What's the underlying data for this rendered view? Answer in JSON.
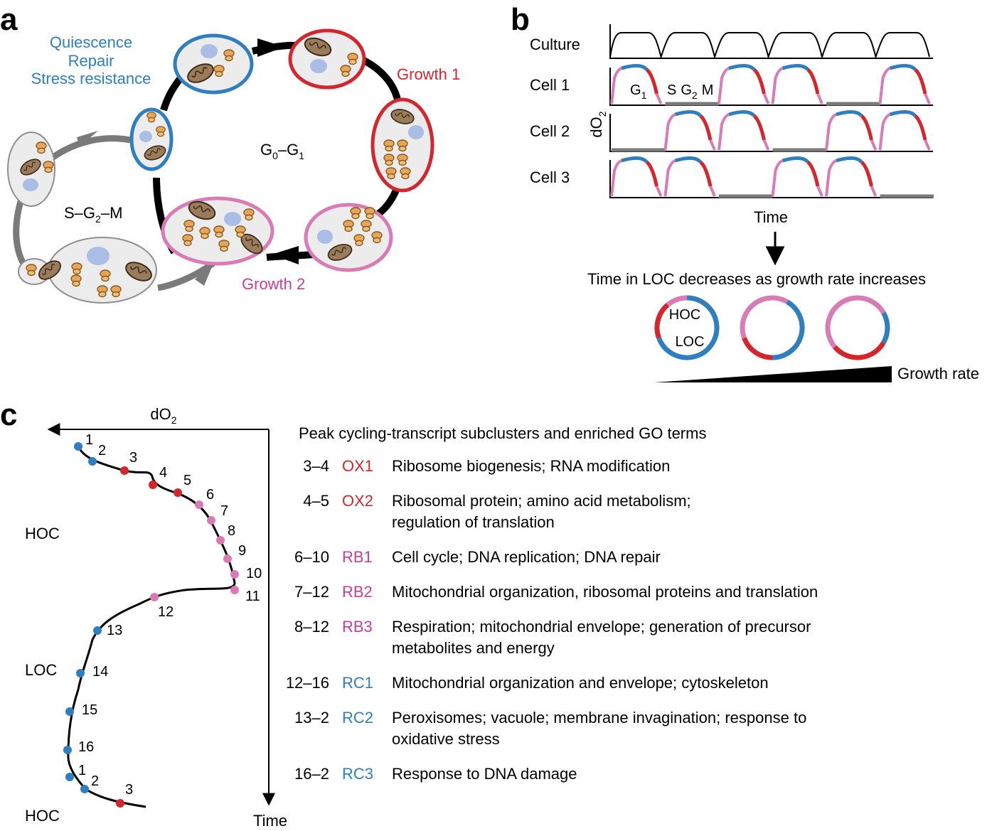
{
  "panels": {
    "a": "a",
    "b": "b",
    "c": "c"
  },
  "colors": {
    "blue": "#2f7ec0",
    "red": "#d3262d",
    "pink": "#d97cb6",
    "gray": "#7a7a7a",
    "cell_fill": "#ececec",
    "cell_stroke": "#8f8f8f",
    "mito": "#9a7b5a",
    "ribosome": "#e6a65a",
    "nucleus": "#a9bde6"
  },
  "panel_a": {
    "quiescence": "Quiescence",
    "repair": "Repair",
    "stress": "Stress resistance",
    "growth1": "Growth 1",
    "growth2": "Growth 2",
    "g0g1": {
      "g": "G",
      "s0": "0",
      "dash": "–G",
      "s1": "1"
    },
    "sg2m": {
      "pre": "S–G",
      "s2": "2",
      "post": "–M"
    }
  },
  "panel_b": {
    "rows": [
      "Culture",
      "Cell 1",
      "Cell 2",
      "Cell 3"
    ],
    "y_axis": {
      "main": "dO",
      "sub": "2"
    },
    "cell1_labels": {
      "g": "G",
      "g_sub": "1",
      "s": "S",
      "g2": "G",
      "g2_sub": "2",
      "m": "M"
    },
    "time": "Time",
    "decrease_text": "Time in LOC decreases as growth rate increases",
    "hoc": "HOC",
    "loc": "LOC",
    "growth_rate": "Growth rate"
  },
  "panel_c": {
    "x_axis": {
      "main": "dO",
      "sub": "2"
    },
    "y_axis": "Time",
    "states": [
      "HOC",
      "LOC",
      "HOC"
    ],
    "point_labels": [
      "1",
      "2",
      "3",
      "4",
      "5",
      "6",
      "7",
      "8",
      "9",
      "10",
      "11",
      "12",
      "13",
      "14",
      "15",
      "16",
      "1",
      "2",
      "3"
    ],
    "table_title": "Peak cycling-transcript subclusters and enriched GO terms",
    "table": [
      {
        "range": "3–4",
        "code": "OX1",
        "color": "red",
        "lines": [
          "Ribosome biogenesis; RNA modification"
        ]
      },
      {
        "range": "4–5",
        "code": "OX2",
        "color": "red",
        "lines": [
          "Ribosomal protein; amino acid metabolism;",
          "regulation of translation"
        ]
      },
      {
        "range": "6–10",
        "code": "RB1",
        "color": "pink",
        "lines": [
          "Cell cycle; DNA replication; DNA repair"
        ]
      },
      {
        "range": "7–12",
        "code": "RB2",
        "color": "pink",
        "lines": [
          "Mitochondrial organization, ribosomal proteins and translation"
        ]
      },
      {
        "range": "8–12",
        "code": "RB3",
        "color": "pink",
        "lines": [
          "Respiration; mitochondrial envelope; generation of precursor",
          "metabolites and energy"
        ]
      },
      {
        "range": "12–16",
        "code": "RC1",
        "color": "blue",
        "lines": [
          "Mitochondrial organization and envelope; cytoskeleton"
        ]
      },
      {
        "range": "13–2",
        "code": "RC2",
        "color": "blue",
        "lines": [
          "Peroxisomes; vacuole; membrane invagination; response to",
          "oxidative stress"
        ]
      },
      {
        "range": "16–2",
        "code": "RC3",
        "color": "blue",
        "lines": [
          "Response to DNA damage"
        ]
      }
    ]
  }
}
